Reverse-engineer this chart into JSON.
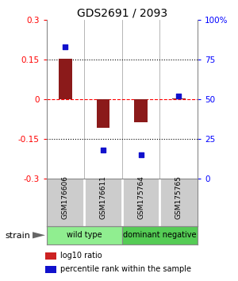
{
  "title": "GDS2691 / 2093",
  "samples": [
    "GSM176606",
    "GSM176611",
    "GSM175764",
    "GSM175765"
  ],
  "log10_ratio": [
    0.153,
    -0.108,
    -0.088,
    0.003
  ],
  "percentile_rank": [
    83,
    18,
    15,
    52
  ],
  "bar_color": "#8B1A1A",
  "dot_color": "#1111CC",
  "ylim_left": [
    -0.3,
    0.3
  ],
  "ylim_right": [
    0,
    100
  ],
  "yticks_left": [
    -0.3,
    -0.15,
    0,
    0.15,
    0.3
  ],
  "ytick_labels_left": [
    "-0.3",
    "-0.15",
    "0",
    "0.15",
    "0.3"
  ],
  "yticks_right": [
    0,
    25,
    50,
    75,
    100
  ],
  "ytick_labels_right": [
    "0",
    "25",
    "50",
    "75",
    "100%"
  ],
  "groups": [
    {
      "label": "wild type",
      "samples": [
        0,
        1
      ],
      "color": "#90EE90"
    },
    {
      "label": "dominant negative",
      "samples": [
        2,
        3
      ],
      "color": "#55CC55"
    }
  ],
  "strain_label": "strain",
  "legend_items": [
    {
      "color": "#CC2222",
      "label": "log10 ratio"
    },
    {
      "color": "#1111CC",
      "label": "percentile rank within the sample"
    }
  ],
  "bar_width": 0.35,
  "dot_size": 22,
  "sample_box_color": "#CCCCCC",
  "sample_box_border": "#888888"
}
